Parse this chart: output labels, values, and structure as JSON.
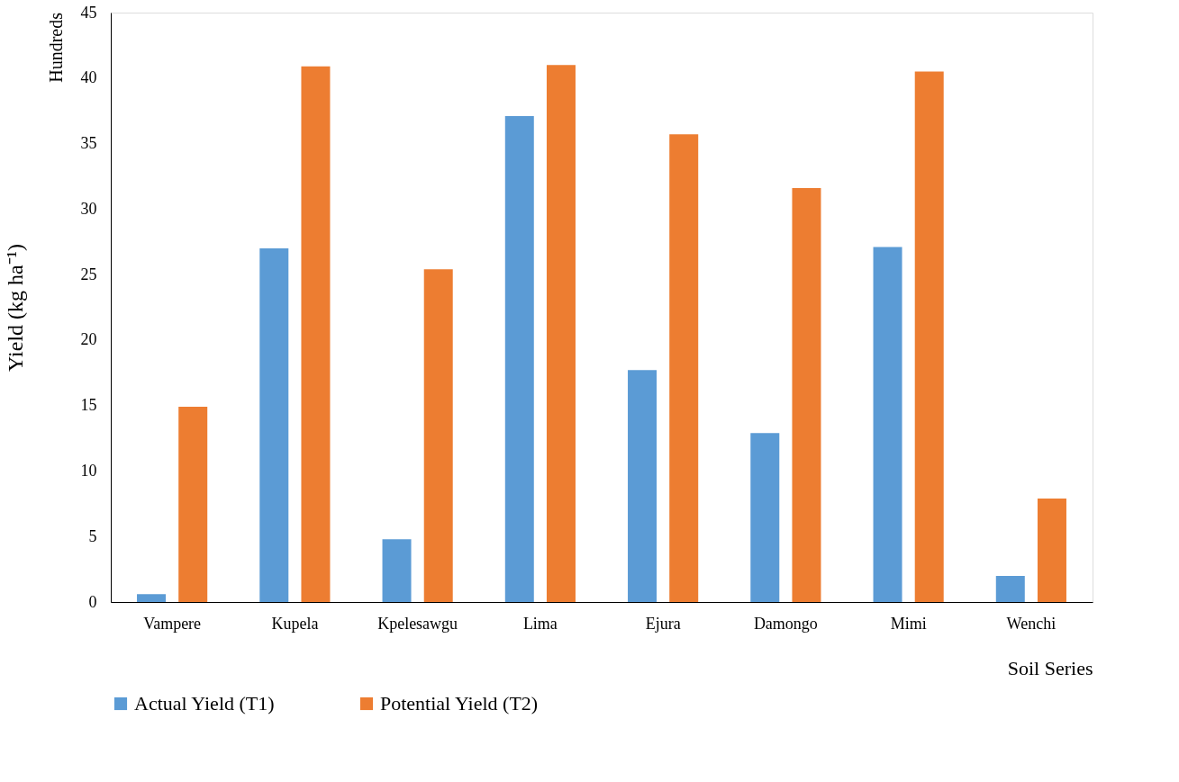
{
  "chart_data": {
    "type": "bar",
    "xlabel": "Soil Series",
    "ylabel": "Yield (kg ha⁻¹)",
    "annotations": [
      "Hundreds"
    ],
    "categories": [
      "Vampere",
      "Kupela",
      "Kpelesawgu",
      "Lima",
      "Ejura",
      "Damongo",
      "Mimi",
      "Wenchi"
    ],
    "series": [
      {
        "name": "Actual Yield (T1)",
        "color": "#5b9bd5",
        "values": [
          0.6,
          27.0,
          4.8,
          37.1,
          17.7,
          12.9,
          27.1,
          2.0
        ]
      },
      {
        "name": "Potential Yield (T2)",
        "color": "#ed7d31",
        "values": [
          14.9,
          40.9,
          25.4,
          41.0,
          35.7,
          31.6,
          40.5,
          7.9
        ]
      }
    ],
    "ylim": [
      0,
      45
    ],
    "yticks": [
      0,
      5,
      10,
      15,
      20,
      25,
      30,
      35,
      40,
      45
    ],
    "grid": false,
    "legend": "bottom"
  }
}
